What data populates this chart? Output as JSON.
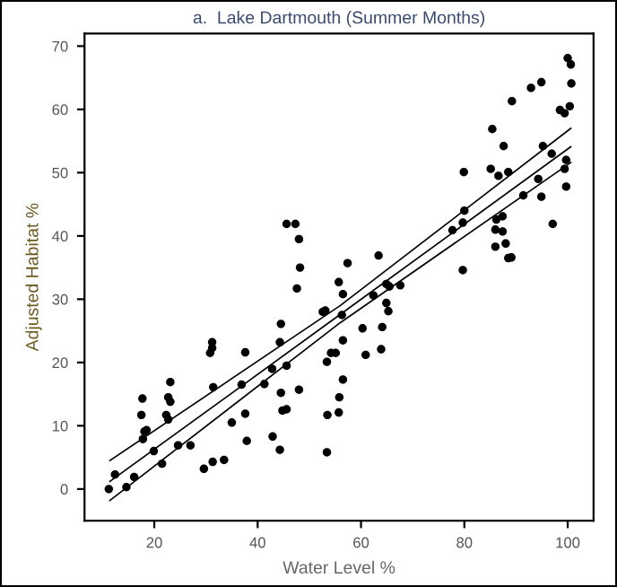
{
  "chart_data": {
    "type": "scatter",
    "title": "a.  Lake Dartmouth (Summer Months)",
    "xlabel": "Water Level %",
    "ylabel": "Adjusted Habitat %",
    "xlim": [
      6.5,
      105
    ],
    "ylim": [
      -5,
      72
    ],
    "xticks": [
      20,
      40,
      60,
      80,
      100
    ],
    "yticks": [
      0,
      10,
      20,
      30,
      40,
      50,
      60,
      70
    ],
    "grid": false,
    "legend": false,
    "series": [
      {
        "marker": "circle",
        "color": "#000000",
        "x": [
          11.2,
          12.4,
          14.6,
          16.1,
          19.9,
          21.5,
          24.6,
          27.0,
          17.7,
          17.5,
          18.1,
          17.8,
          18.5,
          22.7,
          23.1,
          23.1,
          22.3,
          22.7,
          29.6,
          31.3,
          33.5,
          30.8,
          31.2,
          31.2,
          31.4,
          35.0,
          36.9,
          37.6,
          37.6,
          37.9,
          41.3,
          42.8,
          42.9,
          44.3,
          44.5,
          44.3,
          44.5,
          44.8,
          45.6,
          45.6,
          48.0,
          48.2,
          47.6,
          52.6,
          53.1,
          55.7,
          53.4,
          54.2,
          55.1,
          55.8,
          53.5,
          53.4,
          45.6,
          47.3,
          48.0,
          100.0,
          100.6,
          94.9,
          92.9,
          100.7,
          89.2,
          100.4,
          98.5,
          99.4,
          85.4,
          87.6,
          95.2,
          96.9,
          99.7,
          99.4,
          79.9,
          85.1,
          86.6,
          88.5,
          94.3,
          91.4,
          94.9,
          99.7,
          80.0,
          77.7,
          79.7,
          87.4,
          86.2,
          86.0,
          87.4,
          97.1,
          86.0,
          88.0,
          88.5,
          89.1,
          63.4,
          57.4,
          79.7,
          56.5,
          56.3,
          62.4,
          64.9,
          65.5,
          67.6,
          64.9,
          65.3,
          60.3,
          64.1,
          56.5,
          63.9,
          60.9,
          56.5,
          55.7
        ],
        "values": [
          0.0,
          2.3,
          0.3,
          1.9,
          6.0,
          4.0,
          6.9,
          6.9,
          14.3,
          11.7,
          9.1,
          7.9,
          9.3,
          14.5,
          16.9,
          13.8,
          11.7,
          11.0,
          3.2,
          4.3,
          4.6,
          21.5,
          23.2,
          22.3,
          16.1,
          10.5,
          16.5,
          21.6,
          11.9,
          7.6,
          16.6,
          19.0,
          8.3,
          6.2,
          26.1,
          23.2,
          15.2,
          12.4,
          12.6,
          19.5,
          15.7,
          35.0,
          31.7,
          28.0,
          28.2,
          32.7,
          20.1,
          21.5,
          21.5,
          14.5,
          11.7,
          5.8,
          41.9,
          41.9,
          39.5,
          68.1,
          67.1,
          64.3,
          63.4,
          64.1,
          61.3,
          60.5,
          59.9,
          59.4,
          56.9,
          54.2,
          54.2,
          53.0,
          52.0,
          50.6,
          50.1,
          50.6,
          49.5,
          50.1,
          49.0,
          46.4,
          46.2,
          47.8,
          44.0,
          40.9,
          42.1,
          43.1,
          42.6,
          41.0,
          40.7,
          41.9,
          38.3,
          38.8,
          36.5,
          36.6,
          36.9,
          35.7,
          34.6,
          30.8,
          27.5,
          30.6,
          32.4,
          32.0,
          32.2,
          29.4,
          28.1,
          25.4,
          25.6,
          23.5,
          22.1,
          21.2,
          17.3,
          12.1
        ]
      },
      {
        "type": "line",
        "color": "#000000",
        "x": [
          11.4,
          56.0,
          100.6
        ],
        "values": [
          4.5,
          29.0,
          57.0
        ]
      },
      {
        "type": "line",
        "color": "#000000",
        "x": [
          11.4,
          56.0,
          100.6
        ],
        "values": [
          1.2,
          27.6,
          54.1
        ]
      },
      {
        "type": "line",
        "color": "#000000",
        "x": [
          11.4,
          56.0,
          100.6
        ],
        "values": [
          -1.8,
          26.3,
          51.6
        ]
      }
    ]
  }
}
